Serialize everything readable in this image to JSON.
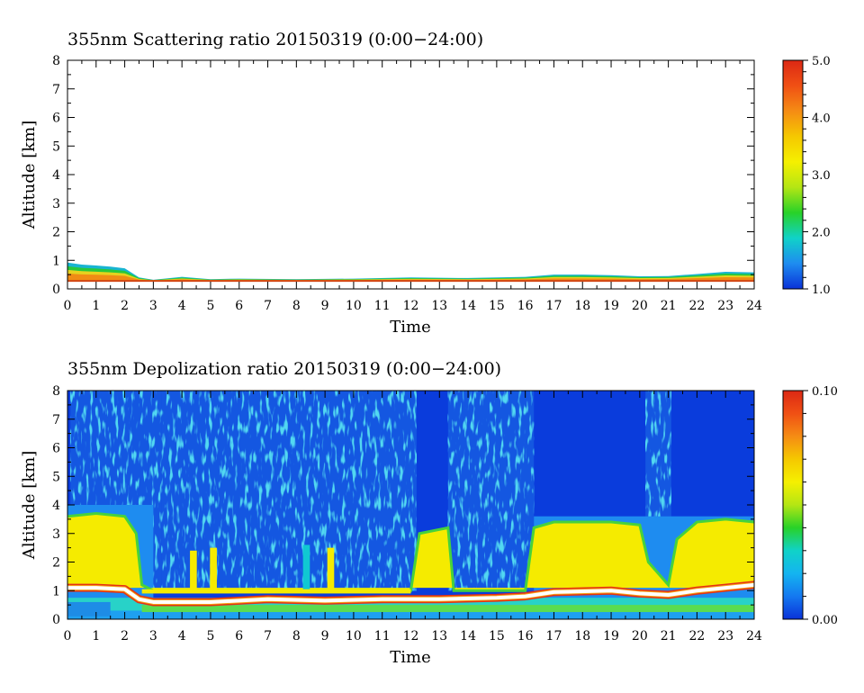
{
  "chart_data": [
    {
      "type": "heatmap",
      "title": "355nm Scattering ratio  20150319 (0:00−24:00)",
      "xlabel": "Time",
      "ylabel": "Altitude [km]",
      "xlim": [
        0,
        24
      ],
      "ylim": [
        0,
        8
      ],
      "x_ticks": [
        "0",
        "1",
        "2",
        "3",
        "4",
        "5",
        "6",
        "7",
        "8",
        "9",
        "10",
        "11",
        "12",
        "13",
        "14",
        "15",
        "16",
        "17",
        "18",
        "19",
        "20",
        "21",
        "22",
        "23",
        "24"
      ],
      "y_ticks": [
        "0",
        "1",
        "2",
        "3",
        "4",
        "5",
        "6",
        "7",
        "8"
      ],
      "colorbar": {
        "range": [
          1.0,
          5.0
        ],
        "tick_labels": [
          "1.0",
          "2.0",
          "3.0",
          "4.0",
          "5.0"
        ],
        "colors": [
          "#0a32d8",
          "#1e8cf0",
          "#10d2c8",
          "#28d228",
          "#b4e614",
          "#f5f000",
          "#f5c800",
          "#f58c14",
          "#f05014",
          "#dc2814"
        ]
      },
      "colorbar_position": "right",
      "grid": false,
      "layers": [
        {
          "name": "aerosol-layer-top",
          "x": [
            0,
            0.5,
            1,
            1.5,
            2,
            2.5,
            3,
            4,
            5,
            6,
            8,
            10,
            12,
            14,
            16,
            17,
            18,
            19,
            20,
            21,
            22,
            23,
            24
          ],
          "y": [
            0.92,
            0.85,
            0.82,
            0.78,
            0.72,
            0.4,
            0.32,
            0.42,
            0.34,
            0.36,
            0.34,
            0.36,
            0.4,
            0.38,
            0.42,
            0.5,
            0.5,
            0.48,
            0.44,
            0.45,
            0.52,
            0.6,
            0.58
          ]
        },
        {
          "name": "ground-line",
          "value_km": 0.28
        }
      ]
    },
    {
      "type": "heatmap",
      "title": "355nm Depolization ratio  20150319 (0:00−24:00)",
      "xlabel": "Time",
      "ylabel": "Altitude [km]",
      "xlim": [
        0,
        24
      ],
      "ylim": [
        0,
        8
      ],
      "x_ticks": [
        "0",
        "1",
        "2",
        "3",
        "4",
        "5",
        "6",
        "7",
        "8",
        "9",
        "10",
        "11",
        "12",
        "13",
        "14",
        "15",
        "16",
        "17",
        "18",
        "19",
        "20",
        "21",
        "22",
        "23",
        "24"
      ],
      "y_ticks": [
        "0",
        "1",
        "2",
        "3",
        "4",
        "5",
        "6",
        "7",
        "8"
      ],
      "colorbar": {
        "range": [
          0.0,
          0.1
        ],
        "tick_labels": [
          "0.00",
          "0.10"
        ],
        "colors": [
          "#0a32d8",
          "#1478f0",
          "#14b4f0",
          "#10d2c8",
          "#28d228",
          "#b4e614",
          "#f5f000",
          "#f5c800",
          "#f58c14",
          "#f05014",
          "#dc2814"
        ]
      },
      "colorbar_position": "right",
      "grid": false,
      "yellow_layer_top_km": {
        "x": [
          0,
          1,
          2,
          2.4,
          2.6,
          3,
          12,
          12.3,
          13.3,
          13.5,
          16,
          16.3,
          17,
          19,
          20,
          20.3,
          21,
          21.3,
          22,
          23,
          24
        ],
        "y": [
          3.6,
          3.7,
          3.6,
          3.0,
          1.2,
          1.0,
          1.0,
          3.0,
          3.2,
          1.0,
          1.0,
          3.2,
          3.4,
          3.4,
          3.3,
          2.0,
          1.2,
          2.8,
          3.4,
          3.5,
          3.4
        ]
      },
      "cloud_base_km": {
        "x": [
          0,
          1,
          2,
          2.5,
          3,
          5,
          7,
          9,
          11,
          13,
          15,
          16,
          17,
          19,
          20,
          21,
          22,
          23,
          24
        ],
        "y": [
          1.1,
          1.1,
          1.05,
          0.7,
          0.6,
          0.6,
          0.7,
          0.65,
          0.7,
          0.7,
          0.75,
          0.8,
          0.95,
          1.0,
          0.9,
          0.85,
          1.0,
          1.1,
          1.2
        ]
      }
    }
  ]
}
